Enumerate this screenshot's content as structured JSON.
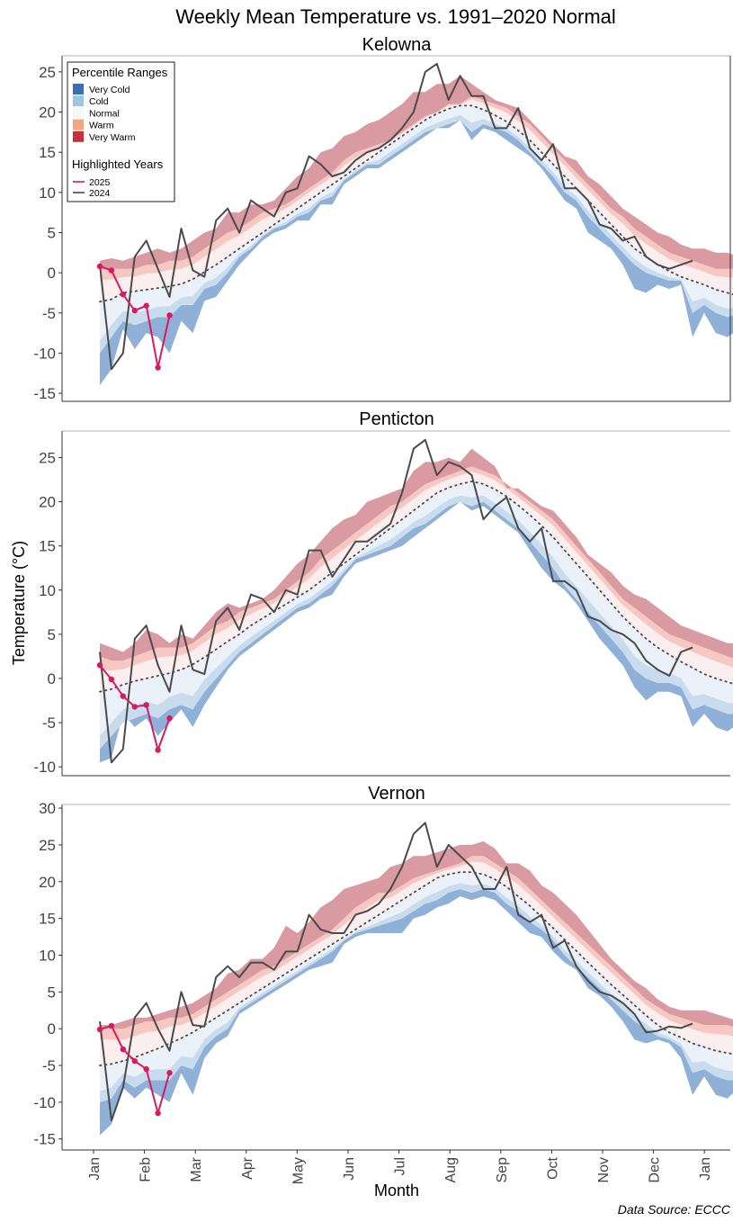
{
  "title": "Weekly Mean Temperature vs. 1991–2020 Normal",
  "ylabel": "Temperature (°C)",
  "xlabel": "Month",
  "source": "Data Source: ECCC",
  "months": [
    "Jan",
    "Feb",
    "Mar",
    "Apr",
    "May",
    "Jun",
    "Jul",
    "Aug",
    "Sep",
    "Oct",
    "Nov",
    "Dec",
    "Jan"
  ],
  "colors": {
    "very_cold": "#8fb0d7",
    "cold": "#c9dcee",
    "normal_low": "#eaf1f8",
    "normal_high": "#fbeeee",
    "warm": "#f7c8c2",
    "very_warm": "#d99aa1",
    "normal_line": "#4a4a4a",
    "y2024": "#4a4a4a",
    "y2025": "#d81b60",
    "legend_very_cold": "#3a6fb5",
    "legend_cold": "#9ec6e1",
    "legend_normal": "#f7f7f7",
    "legend_warm": "#f4a582",
    "legend_very_warm": "#c5323c"
  },
  "legend": {
    "percentile_title": "Percentile Ranges",
    "percentile_items": [
      {
        "label": "Very Cold",
        "color": "legend_very_cold"
      },
      {
        "label": "Cold",
        "color": "legend_cold"
      },
      {
        "label": "Normal",
        "color": "legend_normal"
      },
      {
        "label": "Warm",
        "color": "legend_warm"
      },
      {
        "label": "Very Warm",
        "color": "legend_very_warm"
      }
    ],
    "years_title": "Highlighted Years",
    "year_items": [
      {
        "label": "2025",
        "color": "y2025"
      },
      {
        "label": "2024",
        "color": "y2024"
      }
    ]
  },
  "chart_data": [
    {
      "type": "area",
      "title": "Kelowna",
      "ylim": [
        -16,
        27
      ],
      "yticks": [
        -15,
        -10,
        -5,
        0,
        5,
        10,
        15,
        20,
        25
      ],
      "week_start": 1,
      "band_min": [
        -14,
        -12,
        -7,
        -9.5,
        -7.5,
        -8,
        -10,
        -6,
        -7.5,
        -3.5,
        -3,
        -1,
        1,
        2.5,
        4,
        5,
        5.5,
        6.5,
        6.5,
        8.5,
        8.5,
        11,
        12,
        13,
        13,
        14,
        15,
        16,
        17,
        18,
        18,
        19,
        16.5,
        18,
        17.5,
        16.5,
        15.5,
        14.5,
        13,
        11,
        9,
        8,
        5,
        4,
        3,
        1,
        -2,
        -2.5,
        -1.5,
        -2,
        -1.5,
        -8,
        -5,
        -7.5,
        -8,
        -7,
        -9.5
      ],
      "band_cold": [
        -10,
        -8,
        -6,
        -6.5,
        -6,
        -5.5,
        -5.5,
        -4,
        -4,
        -2,
        -1.5,
        0,
        2,
        3,
        4.5,
        5.5,
        6,
        7,
        7.5,
        9,
        9.5,
        11.5,
        12.5,
        13.5,
        13.5,
        14.5,
        15.5,
        16.5,
        17.5,
        18,
        18.5,
        19,
        17.5,
        18.5,
        18,
        17.5,
        16.5,
        15,
        13.5,
        12,
        10,
        9,
        7,
        5.5,
        4,
        2.5,
        1,
        0,
        -0.5,
        -1,
        -1,
        -5,
        -4,
        -5,
        -5.5,
        -5,
        -6.5
      ],
      "band_p50": [
        -3.6,
        -3.3,
        -2.5,
        -2.3,
        -2.1,
        -1.9,
        -1.7,
        -1.4,
        -0.8,
        0.1,
        1,
        2,
        3,
        4,
        5,
        6,
        7,
        8,
        9,
        10,
        11,
        12,
        13,
        14,
        15,
        16,
        17,
        18,
        19,
        19.8,
        20.4,
        20.8,
        20.8,
        20.3,
        19.6,
        18.8,
        17.7,
        16.5,
        15,
        13.5,
        12,
        10.5,
        9,
        7.5,
        6,
        4.5,
        3,
        2,
        1,
        0.2,
        -0.5,
        -1,
        -1.5,
        -2.1,
        -2.5,
        -2.9,
        -3.2
      ],
      "band_warm": [
        0.5,
        0.5,
        0.5,
        0.5,
        1,
        1,
        1.5,
        1.5,
        2,
        3,
        4,
        5,
        5.5,
        6.5,
        7.5,
        8,
        8.5,
        9.5,
        10.5,
        11.5,
        12.5,
        14,
        15,
        15.5,
        16,
        16.5,
        17.5,
        18.5,
        19.5,
        20,
        21,
        21,
        22,
        21.5,
        21,
        20.5,
        19.5,
        18.5,
        17,
        15.5,
        14,
        12.5,
        11,
        9.5,
        8,
        7,
        5.5,
        4.5,
        3.5,
        2.5,
        2,
        1.5,
        1,
        0.5,
        0.5,
        0.5,
        -0.5
      ],
      "band_max": [
        1.5,
        1.8,
        1.5,
        2,
        2.5,
        3,
        2.5,
        3,
        4,
        5,
        5.5,
        7.5,
        7.5,
        8.5,
        8.5,
        9,
        10.5,
        12,
        13,
        15,
        15.5,
        17,
        17.5,
        18.5,
        19,
        20,
        21,
        22.5,
        22.5,
        23.5,
        23.5,
        24.5,
        23.5,
        22.5,
        21.5,
        21,
        20.5,
        19,
        17.5,
        16,
        14.5,
        14,
        12,
        11,
        9.5,
        8,
        7,
        6,
        5,
        4.5,
        3.5,
        3,
        3,
        2.5,
        2.5,
        2,
        0
      ],
      "series": [
        {
          "name": "2024",
          "week_start": 1,
          "marker": false,
          "color": "y2024",
          "values": [
            1,
            -12,
            -10,
            2,
            4,
            0.5,
            -3,
            5.5,
            0.3,
            -0.5,
            6.5,
            8,
            5,
            9,
            8,
            7,
            10,
            10.5,
            14.5,
            13.5,
            12,
            12.5,
            14,
            15,
            15.5,
            16.5,
            18,
            20,
            25,
            26,
            21.5,
            24.5,
            22,
            22,
            18,
            18,
            20.5,
            15.5,
            14,
            16,
            10.5,
            10.5,
            9,
            6,
            5.5,
            4,
            4.5,
            2,
            1,
            0.5,
            1,
            1.5
          ]
        },
        {
          "name": "2025",
          "week_start": 1,
          "marker": true,
          "color": "y2025",
          "values": [
            0.8,
            0.3,
            -2.7,
            -4.7,
            -4.1,
            -11.8,
            -5.3
          ]
        }
      ]
    },
    {
      "type": "area",
      "title": "Penticton",
      "ylim": [
        -11,
        28
      ],
      "yticks": [
        -10,
        -5,
        0,
        5,
        10,
        15,
        20,
        25
      ],
      "week_start": 1,
      "band_min": [
        -9.5,
        -9,
        -4,
        -5.5,
        -4.5,
        -6.5,
        -5,
        -3.5,
        -5.5,
        -3,
        -1,
        1,
        2.5,
        3.5,
        4.5,
        5.5,
        6.5,
        7.5,
        8,
        9,
        9.5,
        11.5,
        13,
        13.5,
        14,
        14.5,
        15,
        16,
        17,
        18,
        19,
        20,
        19,
        19.5,
        18.5,
        17.5,
        16.5,
        14.5,
        12.5,
        11,
        10,
        8.5,
        6.5,
        4.5,
        3,
        1.5,
        -1,
        -2.5,
        -1.5,
        -1.5,
        -2,
        -5.5,
        -4,
        -5.5,
        -6,
        -5,
        -6.5
      ],
      "band_cold": [
        -8,
        -6.5,
        -5,
        -4.5,
        -4,
        -4.5,
        -3.5,
        -3,
        -3.5,
        -1.5,
        0,
        1.5,
        3,
        4,
        5,
        6,
        7,
        8,
        8.5,
        9.5,
        10.5,
        12,
        13.5,
        14,
        14.5,
        15,
        16,
        17,
        17.5,
        18.5,
        19.5,
        20,
        19.5,
        20,
        19,
        18,
        17,
        15.5,
        14,
        12.5,
        10.5,
        9,
        7.5,
        6,
        4.5,
        3,
        1,
        0,
        -0.5,
        -0.5,
        -1,
        -3.5,
        -3,
        -3.5,
        -4,
        -4,
        -4.5
      ],
      "band_p50": [
        -1.5,
        -1.2,
        -0.7,
        -0.3,
        0,
        0.3,
        0.6,
        1,
        1.6,
        2.4,
        3.3,
        4.2,
        5,
        6,
        6.8,
        7.6,
        8.4,
        9.2,
        10,
        11,
        12,
        13,
        14,
        15,
        16,
        17,
        18,
        19,
        20,
        21,
        21.6,
        22,
        22.3,
        22,
        21.4,
        20.6,
        19.6,
        18.5,
        17.3,
        16,
        14.5,
        13,
        11.5,
        10,
        8.5,
        7,
        5.7,
        4.5,
        3.5,
        2.7,
        1.9,
        1.2,
        0.5,
        0,
        -0.4,
        -0.8,
        -1.2
      ],
      "band_warm": [
        2.5,
        2,
        2,
        2.5,
        3,
        3.5,
        3.5,
        3.5,
        4,
        5,
        6,
        6.5,
        7.5,
        8,
        8.5,
        9,
        10,
        11,
        12,
        13.5,
        14.5,
        15.5,
        16.5,
        17.5,
        18.5,
        19.5,
        20,
        21,
        22,
        22.5,
        23,
        23.5,
        24,
        23.5,
        23,
        22,
        21,
        20,
        19,
        18,
        16.5,
        15,
        13.5,
        12,
        10.5,
        9,
        8,
        7,
        6,
        5,
        4.5,
        4,
        3.5,
        3,
        2.5,
        2,
        1
      ],
      "band_max": [
        4,
        3.5,
        3,
        4,
        5.5,
        5,
        4,
        5,
        4.5,
        6,
        7.5,
        8.5,
        8,
        8.5,
        9,
        10,
        11.5,
        13,
        14,
        15.5,
        17,
        18,
        18.5,
        20,
        20.5,
        21,
        21.5,
        23.5,
        24.5,
        24.5,
        25,
        24.5,
        26,
        25,
        24,
        21.5,
        21.5,
        20.5,
        19.5,
        19,
        17.5,
        16,
        14,
        13,
        12,
        10.5,
        9.5,
        9,
        8,
        7,
        6,
        5.5,
        5,
        4.5,
        4,
        4,
        3.5
      ],
      "series": [
        {
          "name": "2024",
          "week_start": 1,
          "marker": false,
          "color": "y2024",
          "values": [
            3,
            -9.5,
            -8,
            4.5,
            6,
            1.5,
            -1.5,
            6,
            1,
            0.5,
            6.5,
            8,
            5.5,
            9.5,
            9,
            7.5,
            10,
            9.5,
            14.5,
            14.5,
            11.5,
            13.5,
            15.5,
            15.5,
            16.5,
            17.5,
            21,
            26,
            27,
            23,
            24.5,
            24,
            23,
            18,
            19.5,
            20.5,
            17,
            15.5,
            17,
            11,
            11,
            10,
            7,
            6.5,
            5.5,
            5,
            4,
            2,
            1,
            0.3,
            3,
            3.5
          ]
        },
        {
          "name": "2025",
          "week_start": 1,
          "marker": true,
          "color": "y2025",
          "values": [
            1.5,
            -0.1,
            -2,
            -3.2,
            -3,
            -8.1,
            -4.5
          ]
        }
      ]
    },
    {
      "type": "area",
      "title": "Vernon",
      "ylim": [
        -16.5,
        30.5
      ],
      "yticks": [
        -15,
        -10,
        -5,
        0,
        5,
        10,
        15,
        20,
        25,
        30
      ],
      "week_start": 1,
      "band_min": [
        -14.5,
        -13,
        -8,
        -9.5,
        -8,
        -9,
        -10,
        -6,
        -9,
        -4,
        -2,
        -1,
        2,
        3,
        4,
        5,
        6,
        7,
        8,
        8.5,
        9,
        11.5,
        12.5,
        13,
        13,
        13,
        13,
        15,
        15.5,
        16.5,
        17,
        18,
        17.5,
        18,
        17.5,
        16,
        14.5,
        13,
        12.5,
        10.5,
        9,
        8,
        5.5,
        4.5,
        3,
        1,
        -1.5,
        -2,
        -1.5,
        -2,
        -4,
        -9,
        -6.5,
        -9,
        -9.5,
        -8,
        -10
      ],
      "band_cold": [
        -10,
        -9.5,
        -7,
        -8,
        -7,
        -7,
        -7,
        -5,
        -5.5,
        -2.5,
        -1,
        0,
        2.5,
        3.5,
        4.5,
        5.5,
        6.5,
        7.5,
        8.5,
        9.5,
        10.5,
        12,
        13,
        13.5,
        14,
        14.5,
        15,
        16,
        17,
        17.5,
        18.5,
        19,
        18.5,
        19,
        18.5,
        17,
        16,
        14.5,
        13.5,
        12,
        10,
        8.5,
        7,
        5.5,
        4,
        2.5,
        1,
        0,
        -1,
        -1.5,
        -2.5,
        -6,
        -5.5,
        -6.5,
        -7,
        -7,
        -7.5
      ],
      "band_p50": [
        -5,
        -4.8,
        -4.4,
        -3.9,
        -3.3,
        -2.7,
        -2,
        -1.3,
        -0.5,
        0.5,
        1.5,
        2.5,
        3.5,
        4.5,
        5.5,
        6.5,
        7.5,
        8.5,
        9.5,
        10.5,
        11.5,
        12.5,
        13.5,
        14.5,
        15.5,
        16.5,
        17.5,
        18.5,
        19.5,
        20.5,
        21,
        21.3,
        21.3,
        21,
        20.3,
        19.3,
        18,
        16.7,
        15.2,
        13.7,
        12.1,
        10.6,
        9,
        7.5,
        6,
        4.6,
        3.2,
        1.8,
        0.5,
        -0.5,
        -1.2,
        -2,
        -2.5,
        -3,
        -3.3,
        -3.6,
        -3.8
      ],
      "band_warm": [
        0,
        0,
        0,
        0.5,
        1,
        1,
        1.5,
        1.5,
        2,
        3,
        4,
        5,
        6,
        7,
        8,
        8.5,
        9.5,
        10.5,
        11.5,
        12.5,
        13.5,
        15,
        16.5,
        17.5,
        18.5,
        18.5,
        19.5,
        20.5,
        21,
        21.5,
        22,
        22.5,
        23.5,
        23.5,
        22.5,
        21.5,
        20.5,
        19,
        17.5,
        16,
        14.5,
        13,
        11.5,
        10,
        8.5,
        7,
        5.5,
        4,
        3,
        2,
        1.5,
        1,
        0.5,
        0.5,
        0.5,
        0,
        -0.5
      ],
      "band_max": [
        0.5,
        0.5,
        1,
        1.5,
        1.5,
        2,
        2.5,
        3,
        3.5,
        4.5,
        5.5,
        7.5,
        8,
        9.5,
        9.5,
        11,
        14,
        13,
        14.5,
        16.5,
        17.5,
        19,
        19.5,
        20,
        20.5,
        22,
        22.5,
        23.5,
        23.5,
        24,
        24.5,
        25,
        25,
        25.5,
        24.5,
        22.5,
        22.5,
        21.5,
        19.5,
        18.5,
        17,
        15.5,
        13.5,
        11.5,
        9.5,
        8,
        6.5,
        5.5,
        4,
        3,
        2.5,
        2.5,
        2.5,
        2,
        1.5,
        1,
        0
      ],
      "series": [
        {
          "name": "2024",
          "week_start": 1,
          "marker": false,
          "color": "y2024",
          "values": [
            1,
            -12.5,
            -8,
            1.5,
            3.5,
            0,
            -3,
            5,
            0.5,
            0.3,
            7,
            8.5,
            7,
            9,
            9,
            8,
            10.5,
            10.5,
            15.5,
            13.5,
            13,
            13,
            15.5,
            16,
            17,
            19,
            22,
            26.5,
            28,
            22,
            25,
            23.5,
            22,
            19,
            19,
            22,
            15.5,
            14.5,
            15.5,
            11,
            12,
            8.5,
            6.5,
            5,
            4.5,
            3.5,
            2,
            -0.5,
            -0.3,
            0.3,
            0.1,
            0.7
          ]
        },
        {
          "name": "2025",
          "week_start": 1,
          "marker": true,
          "color": "y2025",
          "values": [
            -0.1,
            0.4,
            -2.8,
            -4.4,
            -5.5,
            -11.5,
            -6
          ]
        }
      ]
    }
  ]
}
